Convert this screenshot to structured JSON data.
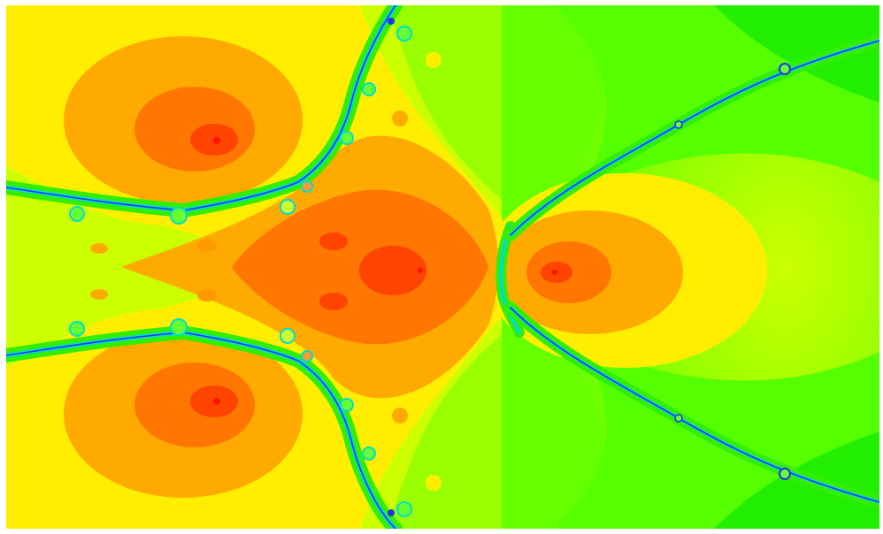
{
  "image": {
    "subject": "newton-fractal",
    "palette": {
      "core": "#ff2200",
      "red": "#ff4400",
      "orange_deep": "#ff7700",
      "orange": "#ffaa00",
      "yellow": "#ffee00",
      "yellow_green": "#ccff00",
      "green": "#88ff00",
      "green_bright": "#33ee00",
      "cyan": "#00ddcc",
      "blue": "#2233ee",
      "white": "#ffffff"
    }
  }
}
